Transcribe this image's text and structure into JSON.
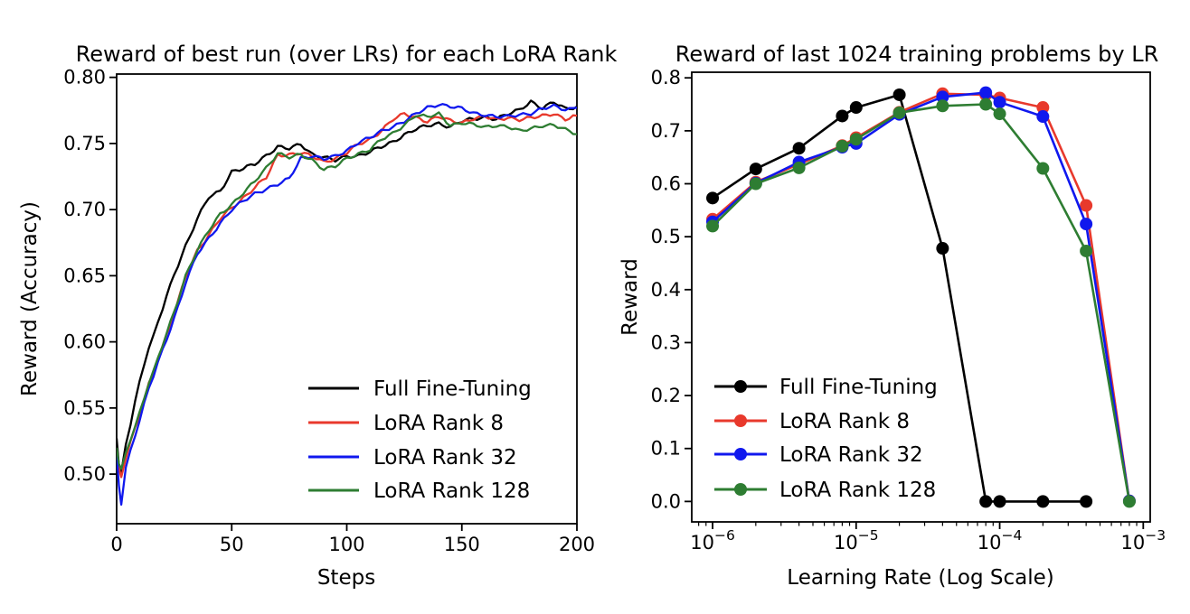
{
  "figure": {
    "background": "#ffffff",
    "text_color": "#000000"
  },
  "chart_data": [
    {
      "type": "line",
      "title": "Reward of best run (over LRs) for each LoRA Rank",
      "xlabel": "Steps",
      "ylabel": "Reward (Accuracy)",
      "xscale": "linear",
      "xlim": [
        0,
        200
      ],
      "ylim": [
        0.4625,
        0.8025
      ],
      "grid": false,
      "legend_position": "lower-right-inside",
      "xticks": [
        0,
        50,
        100,
        150,
        200
      ],
      "xtick_labels": [
        "0",
        "50",
        "100",
        "150",
        "200"
      ],
      "yticks": [
        0.5,
        0.55,
        0.6,
        0.65,
        0.7,
        0.75,
        0.8
      ],
      "ytick_labels": [
        "0.50",
        "0.55",
        "0.60",
        "0.65",
        "0.70",
        "0.75",
        "0.80"
      ],
      "x": [
        0,
        1,
        2,
        4,
        6,
        8,
        10,
        12,
        14,
        16,
        18,
        20,
        25,
        30,
        35,
        40,
        45,
        50,
        55,
        60,
        65,
        70,
        75,
        80,
        85,
        90,
        95,
        100,
        105,
        110,
        115,
        120,
        125,
        130,
        135,
        140,
        145,
        150,
        155,
        160,
        165,
        170,
        175,
        180,
        185,
        190,
        195,
        200
      ],
      "series": [
        {
          "name": "Full Fine-Tuning",
          "color": "#000000",
          "values": [
            0.527,
            0.506,
            0.5,
            0.522,
            0.538,
            0.555,
            0.57,
            0.584,
            0.596,
            0.604,
            0.615,
            0.625,
            0.651,
            0.673,
            0.693,
            0.709,
            0.714,
            0.729,
            0.731,
            0.734,
            0.741,
            0.748,
            0.746,
            0.749,
            0.742,
            0.74,
            0.737,
            0.74,
            0.741,
            0.744,
            0.747,
            0.751,
            0.757,
            0.761,
            0.763,
            0.765,
            0.763,
            0.767,
            0.768,
            0.77,
            0.769,
            0.772,
            0.775,
            0.782,
            0.777,
            0.781,
            0.776,
            0.778
          ]
        },
        {
          "name": "LoRA Rank 8",
          "color": "#e8392c",
          "values": [
            0.518,
            0.504,
            0.498,
            0.513,
            0.524,
            0.534,
            0.544,
            0.556,
            0.568,
            0.577,
            0.587,
            0.597,
            0.621,
            0.649,
            0.669,
            0.681,
            0.693,
            0.701,
            0.709,
            0.717,
            0.724,
            0.741,
            0.742,
            0.743,
            0.74,
            0.736,
            0.739,
            0.743,
            0.749,
            0.753,
            0.76,
            0.768,
            0.772,
            0.77,
            0.767,
            0.77,
            0.767,
            0.766,
            0.769,
            0.77,
            0.768,
            0.77,
            0.768,
            0.769,
            0.771,
            0.773,
            0.768,
            0.771
          ]
        },
        {
          "name": "LoRA Rank 32",
          "color": "#1018ee",
          "values": [
            0.516,
            0.492,
            0.478,
            0.505,
            0.518,
            0.53,
            0.541,
            0.553,
            0.565,
            0.574,
            0.584,
            0.594,
            0.618,
            0.645,
            0.666,
            0.678,
            0.69,
            0.7,
            0.706,
            0.712,
            0.716,
            0.719,
            0.723,
            0.739,
            0.741,
            0.738,
            0.74,
            0.745,
            0.751,
            0.754,
            0.759,
            0.763,
            0.767,
            0.772,
            0.777,
            0.78,
            0.778,
            0.776,
            0.773,
            0.772,
            0.77,
            0.77,
            0.772,
            0.773,
            0.776,
            0.778,
            0.776,
            0.777
          ]
        },
        {
          "name": "LoRA Rank 128",
          "color": "#2e7d32",
          "values": [
            0.52,
            0.508,
            0.503,
            0.515,
            0.526,
            0.536,
            0.546,
            0.558,
            0.57,
            0.578,
            0.588,
            0.598,
            0.622,
            0.65,
            0.67,
            0.684,
            0.696,
            0.704,
            0.713,
            0.721,
            0.731,
            0.743,
            0.74,
            0.741,
            0.737,
            0.731,
            0.733,
            0.738,
            0.742,
            0.746,
            0.753,
            0.757,
            0.764,
            0.772,
            0.77,
            0.772,
            0.764,
            0.766,
            0.764,
            0.762,
            0.764,
            0.763,
            0.759,
            0.761,
            0.764,
            0.764,
            0.76,
            0.757
          ]
        }
      ]
    },
    {
      "type": "line",
      "marker": "circle",
      "title": "Reward of last 1024 training problems by LR",
      "xlabel": "Learning Rate (Log Scale)",
      "ylabel": "Reward",
      "xscale": "log",
      "xlim": [
        7.16e-07,
        0.001118
      ],
      "ylim": [
        -0.0386,
        0.8106
      ],
      "grid": false,
      "legend_position": "lower-left-inside",
      "xticks": [
        1e-06,
        1e-05,
        0.0001,
        0.001
      ],
      "xtick_labels": [
        {
          "base": "10",
          "exp": "−6"
        },
        {
          "base": "10",
          "exp": "−5"
        },
        {
          "base": "10",
          "exp": "−4"
        },
        {
          "base": "10",
          "exp": "−3"
        }
      ],
      "yticks": [
        0.0,
        0.1,
        0.2,
        0.3,
        0.4,
        0.5,
        0.6,
        0.7,
        0.8
      ],
      "ytick_labels": [
        "0.0",
        "0.1",
        "0.2",
        "0.3",
        "0.4",
        "0.5",
        "0.6",
        "0.7",
        "0.8"
      ],
      "x": [
        1e-06,
        2e-06,
        4e-06,
        8e-06,
        1e-05,
        2e-05,
        4e-05,
        8e-05,
        0.0001,
        0.0002,
        0.0004,
        0.0008
      ],
      "series": [
        {
          "name": "Full Fine-Tuning",
          "color": "#000000",
          "values": [
            0.573,
            0.628,
            0.667,
            0.728,
            0.744,
            0.768,
            0.478,
            0.0,
            0.0,
            0.0,
            0.0,
            null
          ]
        },
        {
          "name": "LoRA Rank 8",
          "color": "#e8392c",
          "values": [
            0.533,
            0.603,
            0.637,
            0.672,
            0.687,
            0.735,
            0.77,
            0.768,
            0.762,
            0.744,
            0.559,
            0.001
          ]
        },
        {
          "name": "LoRA Rank 32",
          "color": "#1018ee",
          "values": [
            0.528,
            0.601,
            0.641,
            0.669,
            0.676,
            0.731,
            0.764,
            0.772,
            0.754,
            0.727,
            0.524,
            0.001
          ]
        },
        {
          "name": "LoRA Rank 128",
          "color": "#2e7d32",
          "values": [
            0.52,
            0.6,
            0.63,
            0.671,
            0.684,
            0.734,
            0.747,
            0.75,
            0.732,
            0.629,
            0.473,
            0.0
          ]
        }
      ]
    }
  ]
}
